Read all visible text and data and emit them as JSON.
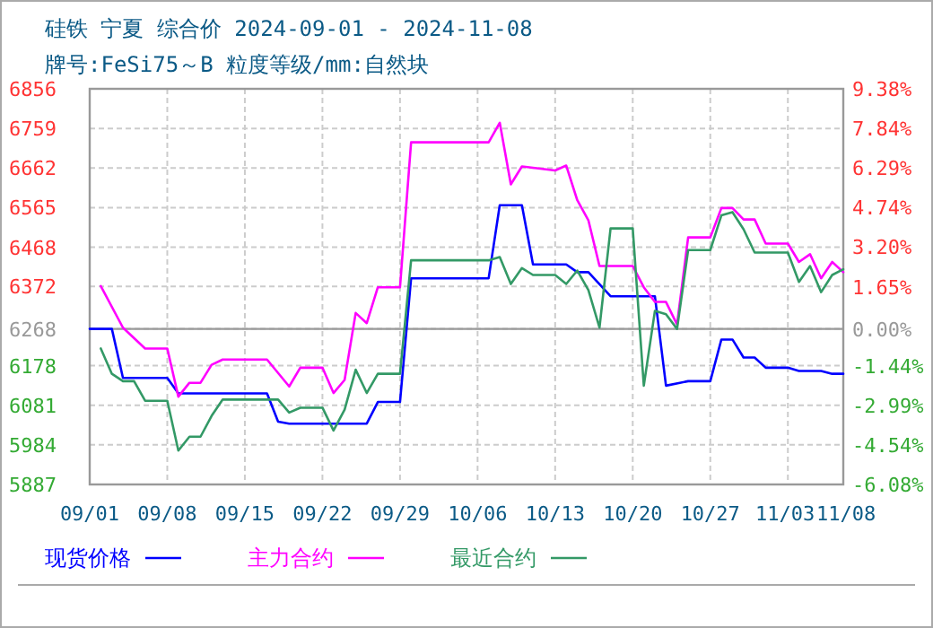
{
  "chart_data": {
    "type": "line",
    "title": "硅铁 宁夏 综合价 2024-09-01 - 2024-11-08",
    "subtitle": "牌号:FeSi75～B 粒度等级/mm:自然块",
    "xlim": [
      "2024-09-01",
      "2024-11-08"
    ],
    "xticks": [
      {
        "value": "2024-09-01",
        "label": "09/01"
      },
      {
        "value": "2024-09-08",
        "label": "09/08"
      },
      {
        "value": "2024-09-15",
        "label": "09/15"
      },
      {
        "value": "2024-09-22",
        "label": "09/22"
      },
      {
        "value": "2024-09-29",
        "label": "09/29"
      },
      {
        "value": "2024-10-06",
        "label": "10/06"
      },
      {
        "value": "2024-10-13",
        "label": "10/13"
      },
      {
        "value": "2024-10-20",
        "label": "10/20"
      },
      {
        "value": "2024-10-27",
        "label": "10/27"
      },
      {
        "value": "2024-11-03",
        "label": "11/03"
      },
      {
        "value": "2024-11-08",
        "label": "11/08"
      }
    ],
    "ylim": [
      5887,
      6856
    ],
    "yticks": [
      6856,
      6759,
      6662,
      6565,
      6468,
      6372,
      6268,
      6178,
      6081,
      5984,
      5887
    ],
    "y2lim": [
      -6.08,
      9.38
    ],
    "y2ticks": [
      {
        "value": 9.38,
        "label": "9.38%"
      },
      {
        "value": 7.84,
        "label": "7.84%"
      },
      {
        "value": 6.29,
        "label": "6.29%"
      },
      {
        "value": 4.74,
        "label": "4.74%"
      },
      {
        "value": 3.2,
        "label": "3.20%"
      },
      {
        "value": 1.65,
        "label": "1.65%"
      },
      {
        "value": 0,
        "label": "0.00%"
      },
      {
        "value": -1.44,
        "label": "-1.44%"
      },
      {
        "value": -2.99,
        "label": "-2.99%"
      },
      {
        "value": -4.54,
        "label": "-4.54%"
      },
      {
        "value": -6.08,
        "label": "-6.08%"
      }
    ],
    "ref_lines": [
      {
        "axis": "y",
        "value": 6268,
        "color": "#999999"
      }
    ],
    "grid": true,
    "legend": "bottom",
    "line_style": "solid",
    "marker": "none",
    "series": [
      {
        "name": "现货价格",
        "color": "#0000ff",
        "x": [
          "2024-09-01",
          "2024-09-03",
          "2024-09-04",
          "2024-09-08",
          "2024-09-09",
          "2024-09-17",
          "2024-09-18",
          "2024-09-19",
          "2024-09-26",
          "2024-09-27",
          "2024-09-29",
          "2024-09-30",
          "2024-10-07",
          "2024-10-08",
          "2024-10-10",
          "2024-10-11",
          "2024-10-14",
          "2024-10-15",
          "2024-10-16",
          "2024-10-18",
          "2024-10-22",
          "2024-10-23",
          "2024-10-25",
          "2024-10-27",
          "2024-10-28",
          "2024-10-29",
          "2024-10-30",
          "2024-10-31",
          "2024-11-01",
          "2024-11-03",
          "2024-11-04",
          "2024-11-06",
          "2024-11-07",
          "2024-11-08"
        ],
        "values": [
          6268,
          6268,
          6148,
          6148,
          6110,
          6110,
          6041,
          6036,
          6036,
          6089,
          6089,
          6392,
          6392,
          6571,
          6571,
          6426,
          6426,
          6407,
          6407,
          6348,
          6348,
          6129,
          6140,
          6140,
          6242,
          6242,
          6198,
          6198,
          6173,
          6173,
          6165,
          6165,
          6158,
          6158
        ]
      },
      {
        "name": "主力合约",
        "color": "#ff00ff",
        "x": [
          "2024-09-02",
          "2024-09-04",
          "2024-09-06",
          "2024-09-08",
          "2024-09-09",
          "2024-09-10",
          "2024-09-11",
          "2024-09-12",
          "2024-09-13",
          "2024-09-17",
          "2024-09-19",
          "2024-09-20",
          "2024-09-22",
          "2024-09-23",
          "2024-09-24",
          "2024-09-25",
          "2024-09-26",
          "2024-09-27",
          "2024-09-29",
          "2024-09-30",
          "2024-10-07",
          "2024-10-08",
          "2024-10-09",
          "2024-10-10",
          "2024-10-13",
          "2024-10-14",
          "2024-10-15",
          "2024-10-16",
          "2024-10-17",
          "2024-10-20",
          "2024-10-21",
          "2024-10-22",
          "2024-10-23",
          "2024-10-24",
          "2024-10-25",
          "2024-10-27",
          "2024-10-28",
          "2024-10-29",
          "2024-10-30",
          "2024-10-31",
          "2024-11-01",
          "2024-11-03",
          "2024-11-04",
          "2024-11-05",
          "2024-11-06",
          "2024-11-07",
          "2024-11-08"
        ],
        "values": [
          6373,
          6271,
          6220,
          6220,
          6102,
          6136,
          6136,
          6180,
          6193,
          6193,
          6127,
          6173,
          6173,
          6111,
          6143,
          6307,
          6282,
          6370,
          6370,
          6725,
          6725,
          6773,
          6622,
          6666,
          6656,
          6668,
          6583,
          6534,
          6422,
          6422,
          6370,
          6334,
          6334,
          6279,
          6492,
          6492,
          6564,
          6564,
          6536,
          6536,
          6477,
          6477,
          6432,
          6451,
          6392,
          6432,
          6407
        ]
      },
      {
        "name": "最近合约",
        "color": "#339966",
        "x": [
          "2024-09-02",
          "2024-09-03",
          "2024-09-04",
          "2024-09-05",
          "2024-09-06",
          "2024-09-08",
          "2024-09-09",
          "2024-09-10",
          "2024-09-11",
          "2024-09-12",
          "2024-09-13",
          "2024-09-18",
          "2024-09-19",
          "2024-09-20",
          "2024-09-22",
          "2024-09-23",
          "2024-09-24",
          "2024-09-25",
          "2024-09-26",
          "2024-09-27",
          "2024-09-29",
          "2024-09-30",
          "2024-10-07",
          "2024-10-08",
          "2024-10-09",
          "2024-10-10",
          "2024-10-11",
          "2024-10-13",
          "2024-10-14",
          "2024-10-15",
          "2024-10-16",
          "2024-10-17",
          "2024-10-18",
          "2024-10-20",
          "2024-10-21",
          "2024-10-22",
          "2024-10-23",
          "2024-10-24",
          "2024-10-25",
          "2024-10-27",
          "2024-10-28",
          "2024-10-29",
          "2024-10-30",
          "2024-10-31",
          "2024-11-03",
          "2024-11-04",
          "2024-11-05",
          "2024-11-06",
          "2024-11-07",
          "2024-11-08"
        ],
        "values": [
          6220,
          6158,
          6140,
          6140,
          6092,
          6092,
          5970,
          6004,
          6004,
          6055,
          6095,
          6095,
          6063,
          6075,
          6075,
          6019,
          6070,
          6168,
          6111,
          6158,
          6158,
          6436,
          6436,
          6444,
          6378,
          6417,
          6400,
          6400,
          6378,
          6411,
          6363,
          6271,
          6514,
          6514,
          6129,
          6312,
          6304,
          6268,
          6461,
          6461,
          6546,
          6554,
          6512,
          6455,
          6455,
          6383,
          6422,
          6358,
          6400,
          6414
        ]
      }
    ]
  }
}
